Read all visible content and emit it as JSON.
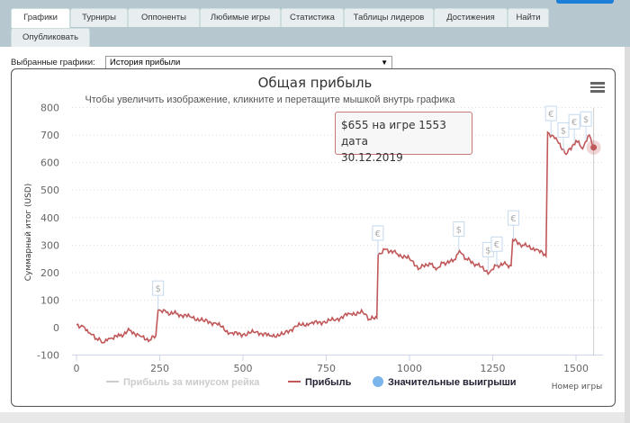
{
  "tabs": [
    {
      "label": "Графики",
      "active": true
    },
    {
      "label": "Турниры"
    },
    {
      "label": "Оппоненты"
    },
    {
      "label": "Любимые игры"
    },
    {
      "label": "Статистика"
    },
    {
      "label": "Таблицы лидеров"
    },
    {
      "label": "Достижения"
    },
    {
      "label": "Найти"
    },
    {
      "label": "Опубликовать"
    }
  ],
  "selector": {
    "label": "Выбранные графики:",
    "value": "История прибыли"
  },
  "tooltip": {
    "line1": "$655 на игре 1553 дата",
    "line2": "30.12.2019"
  },
  "chart_data": {
    "type": "line",
    "title": "Общая прибыль",
    "subtitle": "Чтобы увеличить изображение, кликните и перетащите мышкой внутрь графика",
    "xlabel": "Номер игры",
    "ylabel": "Суммарный итог (USD)",
    "xlim": [
      0,
      1560
    ],
    "ylim": [
      -100,
      800
    ],
    "xticks": [
      0,
      250,
      500,
      750,
      1000,
      1250,
      1500
    ],
    "yticks": [
      -100,
      0,
      100,
      200,
      300,
      400,
      500,
      600,
      700,
      800
    ],
    "grid": true,
    "legend": {
      "placement": "bottom",
      "items": [
        {
          "name": "Прибыль за минусом рейка",
          "color": "#cccccc",
          "hidden": true
        },
        {
          "name": "Прибыль",
          "color": "#c0585a"
        },
        {
          "name": "Значительные выигрыши",
          "color": "#7cb5ec"
        }
      ]
    },
    "series": [
      {
        "name": "Прибыль",
        "color": "#c0585a",
        "points": [
          [
            0,
            10
          ],
          [
            20,
            5
          ],
          [
            40,
            -20
          ],
          [
            60,
            -40
          ],
          [
            80,
            -55
          ],
          [
            100,
            -40
          ],
          [
            130,
            -30
          ],
          [
            160,
            -10
          ],
          [
            190,
            -30
          ],
          [
            220,
            -45
          ],
          [
            238,
            -30
          ],
          [
            245,
            65
          ],
          [
            270,
            55
          ],
          [
            300,
            50
          ],
          [
            340,
            40
          ],
          [
            380,
            25
          ],
          [
            420,
            15
          ],
          [
            460,
            -20
          ],
          [
            500,
            -25
          ],
          [
            540,
            -15
          ],
          [
            580,
            -30
          ],
          [
            620,
            -25
          ],
          [
            660,
            5
          ],
          [
            700,
            15
          ],
          [
            740,
            20
          ],
          [
            780,
            30
          ],
          [
            820,
            50
          ],
          [
            860,
            55
          ],
          [
            880,
            30
          ],
          [
            902,
            35
          ],
          [
            906,
            265
          ],
          [
            930,
            285
          ],
          [
            960,
            270
          ],
          [
            1000,
            250
          ],
          [
            1030,
            215
          ],
          [
            1060,
            235
          ],
          [
            1080,
            210
          ],
          [
            1100,
            235
          ],
          [
            1130,
            240
          ],
          [
            1150,
            280
          ],
          [
            1170,
            250
          ],
          [
            1200,
            230
          ],
          [
            1240,
            200
          ],
          [
            1260,
            225
          ],
          [
            1290,
            230
          ],
          [
            1305,
            225
          ],
          [
            1310,
            320
          ],
          [
            1340,
            300
          ],
          [
            1380,
            285
          ],
          [
            1410,
            260
          ],
          [
            1415,
            710
          ],
          [
            1440,
            690
          ],
          [
            1470,
            630
          ],
          [
            1500,
            680
          ],
          [
            1520,
            650
          ],
          [
            1540,
            700
          ],
          [
            1553,
            655
          ]
        ]
      }
    ],
    "flags": [
      {
        "x": 245,
        "y": 65,
        "symbol": "$"
      },
      {
        "x": 905,
        "y": 265,
        "symbol": "€"
      },
      {
        "x": 1148,
        "y": 280,
        "symbol": "$"
      },
      {
        "x": 1236,
        "y": 205,
        "symbol": "$"
      },
      {
        "x": 1262,
        "y": 225,
        "symbol": "€"
      },
      {
        "x": 1312,
        "y": 320,
        "symbol": "€"
      },
      {
        "x": 1425,
        "y": 700,
        "symbol": "€"
      },
      {
        "x": 1462,
        "y": 640,
        "symbol": "$"
      },
      {
        "x": 1495,
        "y": 670,
        "symbol": "€"
      },
      {
        "x": 1530,
        "y": 680,
        "symbol": "$"
      }
    ]
  }
}
